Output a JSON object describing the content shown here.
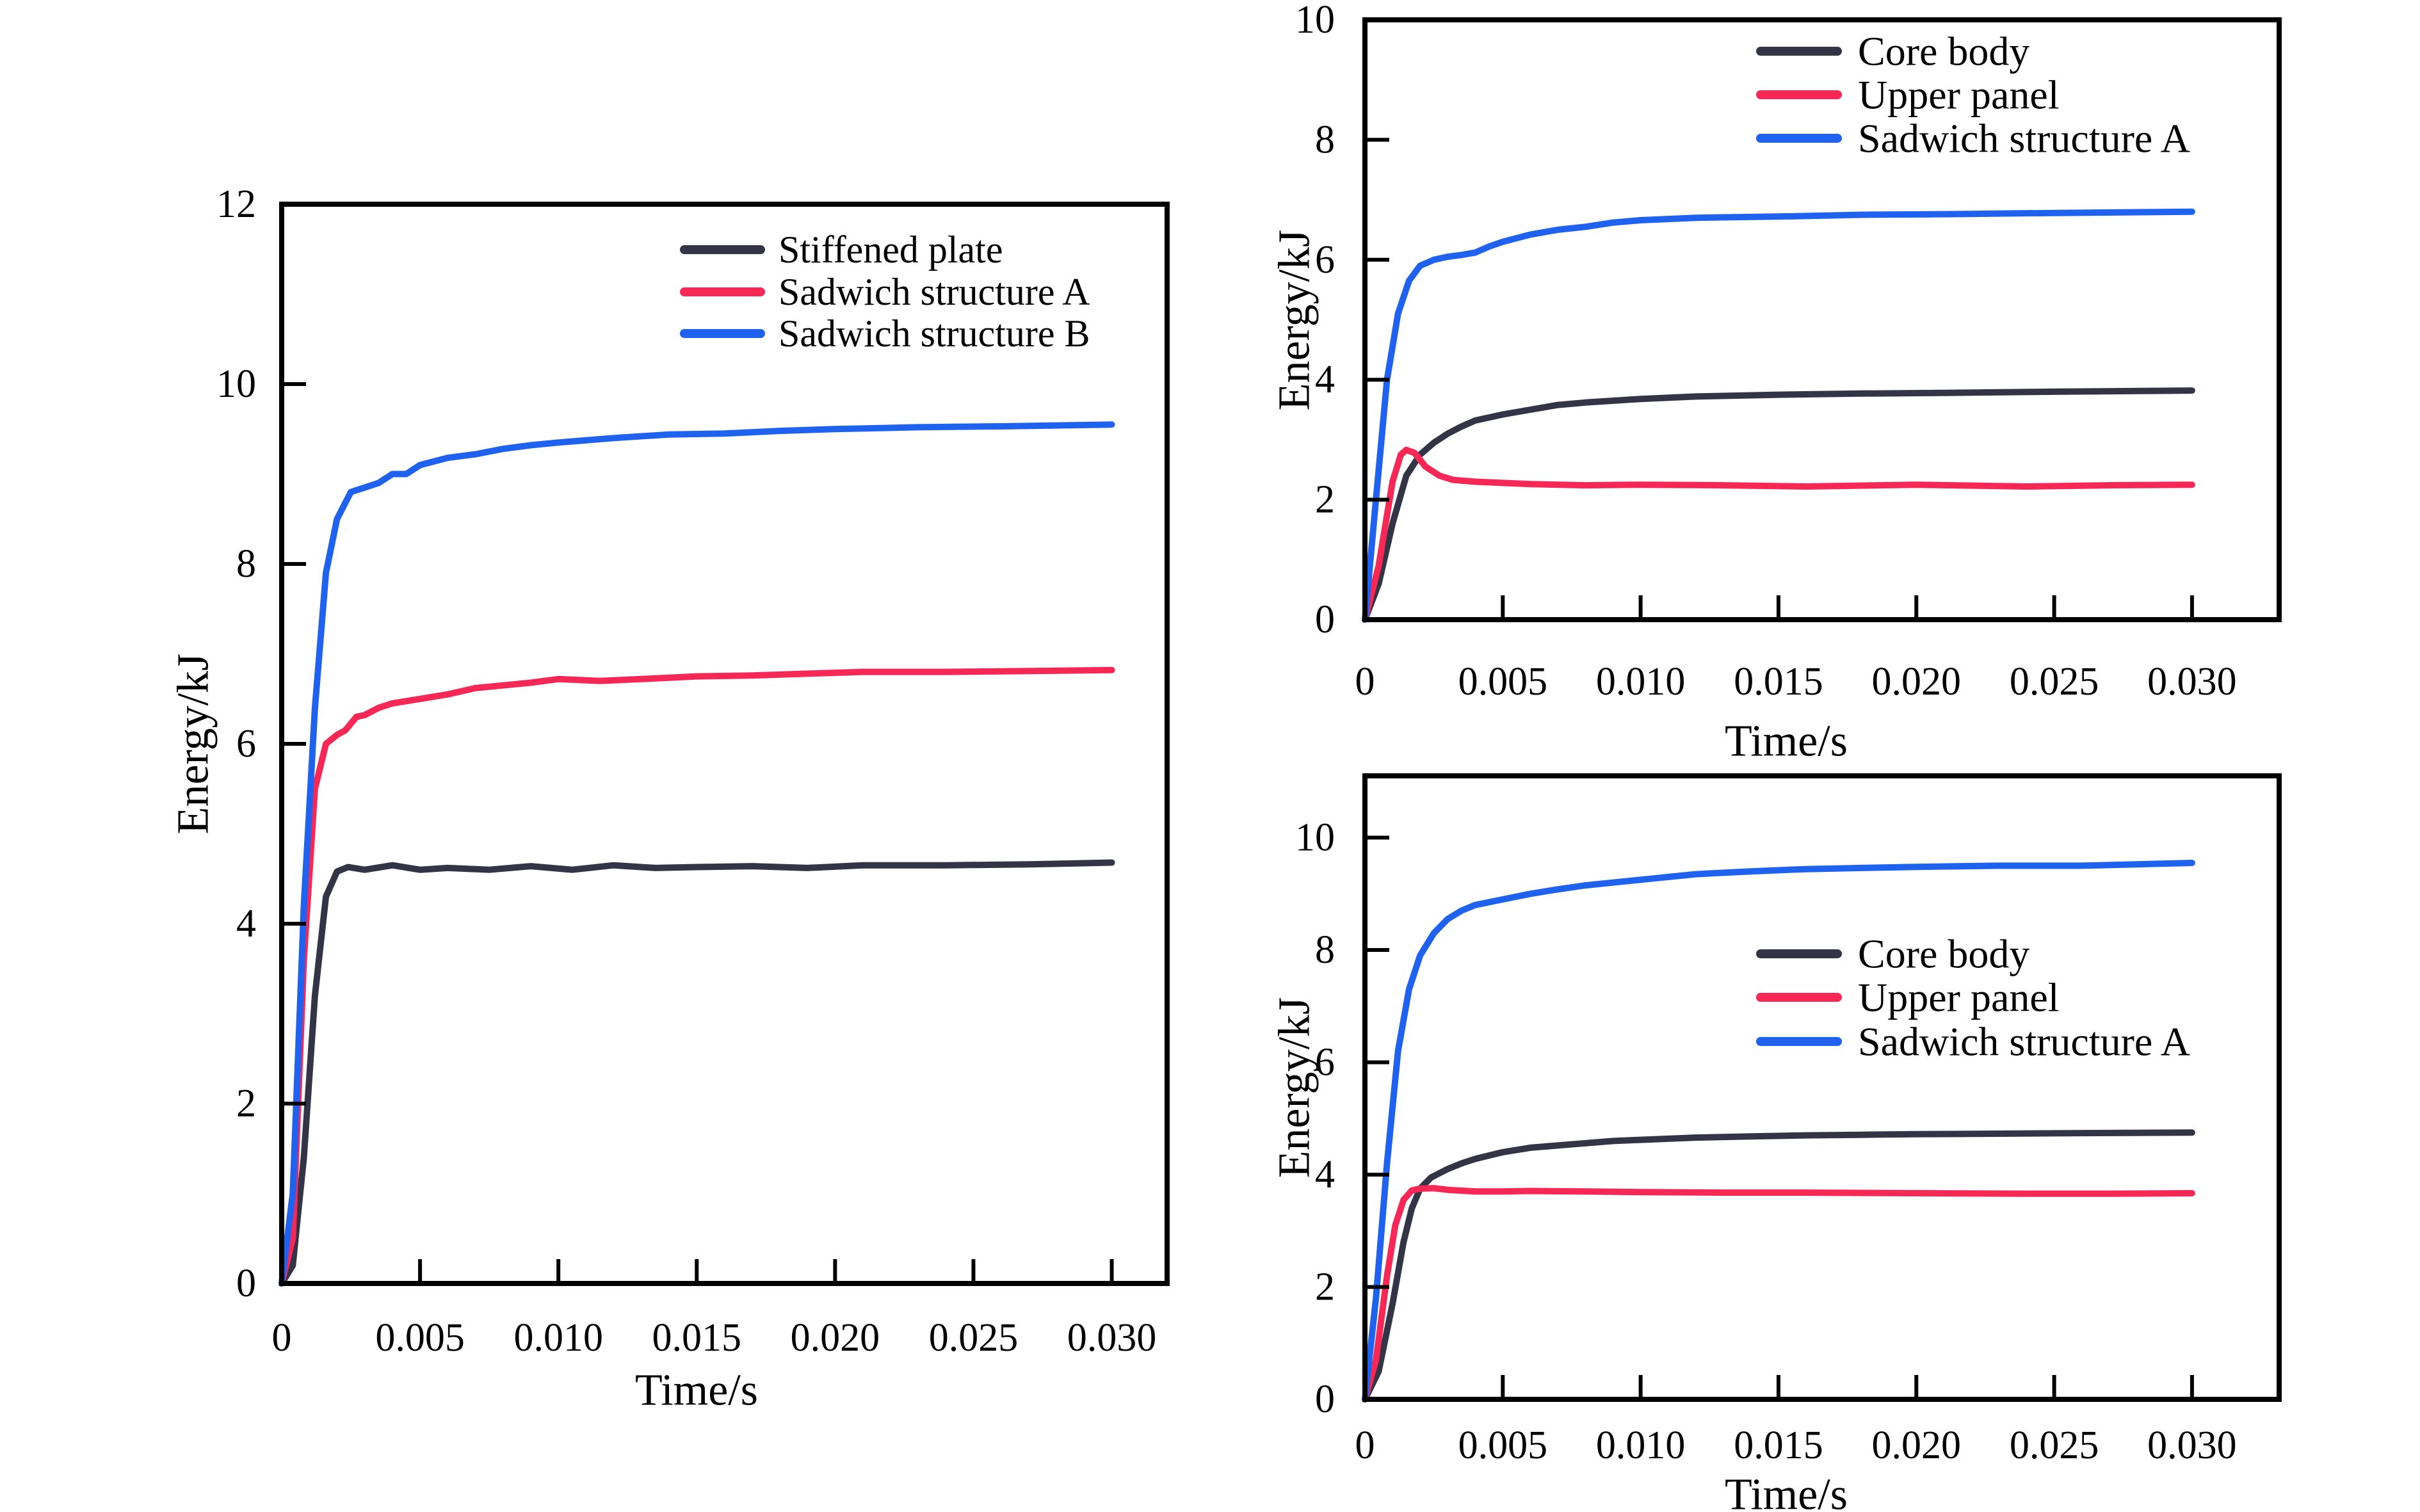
{
  "figure": {
    "background": "#FFFFFF",
    "description": "Three energy-vs-time line charts",
    "colors": {
      "axis": "#000000",
      "dark_series": "#343447",
      "red_series": "#F72855",
      "blue_series": "#1F62F0"
    }
  },
  "chart_data": [
    {
      "id": "left",
      "type": "line",
      "title": "",
      "xlabel": "Time/s",
      "ylabel": "Energy/kJ",
      "xlim": [
        0,
        0.032
      ],
      "ylim": [
        0,
        12
      ],
      "grid": false,
      "legend_position": "top-right-inside",
      "xticks": {
        "values": [
          0,
          0.005,
          0.01,
          0.015,
          0.02,
          0.025,
          0.03
        ],
        "labels": [
          "0",
          "0.005",
          "0.010",
          "0.015",
          "0.020",
          "0.025",
          "0.030"
        ]
      },
      "yticks": {
        "values": [
          0,
          2,
          4,
          6,
          8,
          10,
          12
        ],
        "labels": [
          "0",
          "2",
          "4",
          "6",
          "8",
          "10",
          "12"
        ]
      },
      "legend": {
        "entries": [
          {
            "label": "Stiffened plate",
            "color": "#343447"
          },
          {
            "label": "Sadwich structure A",
            "color": "#F72855"
          },
          {
            "label": "Sadwich structure B",
            "color": "#1F62F0"
          }
        ]
      },
      "series": [
        {
          "name": "Stiffened plate",
          "color": "#343447",
          "x": [
            0,
            0.0004,
            0.0008,
            0.0012,
            0.0016,
            0.002,
            0.0024,
            0.003,
            0.004,
            0.005,
            0.006,
            0.0075,
            0.009,
            0.0105,
            0.012,
            0.0135,
            0.015,
            0.017,
            0.019,
            0.021,
            0.024,
            0.027,
            0.03
          ],
          "y": [
            0,
            0.2,
            1.4,
            3.2,
            4.3,
            4.58,
            4.63,
            4.6,
            4.65,
            4.6,
            4.62,
            4.6,
            4.64,
            4.6,
            4.65,
            4.62,
            4.63,
            4.64,
            4.62,
            4.65,
            4.65,
            4.66,
            4.68
          ]
        },
        {
          "name": "Sadwich structure A",
          "color": "#F72855",
          "x": [
            0,
            0.0004,
            0.0008,
            0.0012,
            0.0016,
            0.002,
            0.0023,
            0.0027,
            0.003,
            0.0035,
            0.004,
            0.005,
            0.006,
            0.007,
            0.008,
            0.009,
            0.01,
            0.0115,
            0.013,
            0.015,
            0.017,
            0.019,
            0.021,
            0.024,
            0.027,
            0.03
          ],
          "y": [
            0,
            0.5,
            3.6,
            5.5,
            6.0,
            6.1,
            6.15,
            6.3,
            6.32,
            6.4,
            6.45,
            6.5,
            6.55,
            6.62,
            6.65,
            6.68,
            6.72,
            6.7,
            6.72,
            6.75,
            6.76,
            6.78,
            6.8,
            6.8,
            6.81,
            6.82
          ]
        },
        {
          "name": "Sadwich structure B",
          "color": "#1F62F0",
          "x": [
            0,
            0.0004,
            0.0008,
            0.0012,
            0.0016,
            0.002,
            0.0025,
            0.003,
            0.0035,
            0.004,
            0.0045,
            0.005,
            0.006,
            0.007,
            0.008,
            0.009,
            0.01,
            0.012,
            0.014,
            0.016,
            0.018,
            0.02,
            0.023,
            0.026,
            0.03
          ],
          "y": [
            0,
            1.0,
            4.2,
            6.4,
            7.9,
            8.5,
            8.8,
            8.85,
            8.9,
            9.0,
            9.0,
            9.1,
            9.18,
            9.22,
            9.28,
            9.32,
            9.35,
            9.4,
            9.44,
            9.45,
            9.48,
            9.5,
            9.52,
            9.53,
            9.55
          ]
        }
      ]
    },
    {
      "id": "top-right",
      "type": "line",
      "title": "",
      "xlabel": "Time/s",
      "ylabel": "Energy/kJ",
      "xlim": [
        0,
        0.03316
      ],
      "ylim": [
        0,
        10
      ],
      "grid": false,
      "legend_position": "top-right-inside",
      "xticks": {
        "values": [
          0,
          0.005,
          0.01,
          0.015,
          0.02,
          0.025,
          0.03
        ],
        "labels": [
          "0",
          "0.005",
          "0.010",
          "0.015",
          "0.020",
          "0.025",
          "0.030"
        ]
      },
      "yticks": {
        "values": [
          0,
          2,
          4,
          6,
          8,
          10
        ],
        "labels": [
          "0",
          "2",
          "4",
          "6",
          "8",
          "10"
        ]
      },
      "legend": {
        "entries": [
          {
            "label": "Core body",
            "color": "#343447"
          },
          {
            "label": "Upper panel",
            "color": "#F72855"
          },
          {
            "label": "Sadwich structure A",
            "color": "#1F62F0"
          }
        ]
      },
      "series": [
        {
          "name": "Core body",
          "color": "#343447",
          "x": [
            0,
            0.0005,
            0.001,
            0.0015,
            0.002,
            0.0025,
            0.003,
            0.0035,
            0.004,
            0.005,
            0.006,
            0.007,
            0.008,
            0.01,
            0.012,
            0.015,
            0.018,
            0.021,
            0.025,
            0.03
          ],
          "y": [
            0,
            0.6,
            1.6,
            2.4,
            2.75,
            2.95,
            3.1,
            3.22,
            3.32,
            3.42,
            3.5,
            3.58,
            3.62,
            3.68,
            3.72,
            3.75,
            3.77,
            3.78,
            3.8,
            3.82
          ]
        },
        {
          "name": "Upper panel",
          "color": "#F72855",
          "x": [
            0,
            0.0005,
            0.001,
            0.0013,
            0.0015,
            0.0018,
            0.0022,
            0.0027,
            0.0032,
            0.004,
            0.005,
            0.006,
            0.008,
            0.01,
            0.013,
            0.016,
            0.02,
            0.024,
            0.027,
            0.03
          ],
          "y": [
            0,
            0.9,
            2.3,
            2.75,
            2.83,
            2.78,
            2.55,
            2.4,
            2.33,
            2.3,
            2.28,
            2.26,
            2.24,
            2.25,
            2.24,
            2.22,
            2.25,
            2.22,
            2.24,
            2.25
          ]
        },
        {
          "name": "Sadwich structure A",
          "color": "#1F62F0",
          "x": [
            0,
            0.0004,
            0.0008,
            0.0012,
            0.0016,
            0.002,
            0.0025,
            0.003,
            0.0035,
            0.004,
            0.0045,
            0.005,
            0.006,
            0.007,
            0.008,
            0.009,
            0.01,
            0.012,
            0.015,
            0.018,
            0.021,
            0.025,
            0.03
          ],
          "y": [
            0,
            2.0,
            4.0,
            5.1,
            5.65,
            5.9,
            6.0,
            6.05,
            6.08,
            6.12,
            6.22,
            6.3,
            6.42,
            6.5,
            6.55,
            6.62,
            6.66,
            6.7,
            6.72,
            6.75,
            6.76,
            6.78,
            6.8
          ]
        }
      ]
    },
    {
      "id": "bottom-right",
      "type": "line",
      "title": "",
      "xlabel": "Time/s",
      "ylabel": "Energy/kJ",
      "xlim": [
        0,
        0.03316
      ],
      "ylim": [
        0,
        11.1
      ],
      "grid": false,
      "legend_position": "middle-right-inside",
      "xticks": {
        "values": [
          0,
          0.005,
          0.01,
          0.015,
          0.02,
          0.025,
          0.03
        ],
        "labels": [
          "0",
          "0.005",
          "0.010",
          "0.015",
          "0.020",
          "0.025",
          "0.030"
        ]
      },
      "yticks": {
        "values": [
          0,
          2,
          4,
          6,
          8,
          10
        ],
        "labels": [
          "0",
          "2",
          "4",
          "6",
          "8",
          "10"
        ]
      },
      "legend": {
        "entries": [
          {
            "label": "Core body",
            "color": "#343447"
          },
          {
            "label": "Upper panel",
            "color": "#F72855"
          },
          {
            "label": "Sadwich structure A",
            "color": "#1F62F0"
          }
        ]
      },
      "series": [
        {
          "name": "Core body",
          "color": "#343447",
          "x": [
            0,
            0.0005,
            0.001,
            0.0014,
            0.0017,
            0.002,
            0.0024,
            0.003,
            0.0035,
            0.004,
            0.005,
            0.006,
            0.007,
            0.008,
            0.009,
            0.01,
            0.012,
            0.014,
            0.016,
            0.018,
            0.02,
            0.023,
            0.026,
            0.03
          ],
          "y": [
            0,
            0.5,
            1.7,
            2.8,
            3.4,
            3.75,
            3.95,
            4.1,
            4.2,
            4.28,
            4.4,
            4.48,
            4.52,
            4.56,
            4.6,
            4.62,
            4.66,
            4.68,
            4.7,
            4.71,
            4.72,
            4.73,
            4.74,
            4.75
          ]
        },
        {
          "name": "Upper panel",
          "color": "#F72855",
          "x": [
            0,
            0.0004,
            0.0008,
            0.0011,
            0.0014,
            0.0017,
            0.002,
            0.0025,
            0.003,
            0.004,
            0.005,
            0.006,
            0.008,
            0.01,
            0.013,
            0.016,
            0.02,
            0.024,
            0.027,
            0.03
          ],
          "y": [
            0,
            0.7,
            2.2,
            3.1,
            3.55,
            3.72,
            3.75,
            3.76,
            3.73,
            3.7,
            3.7,
            3.71,
            3.7,
            3.69,
            3.68,
            3.68,
            3.67,
            3.66,
            3.66,
            3.67
          ]
        },
        {
          "name": "Sadwich structure A",
          "color": "#1F62F0",
          "x": [
            0,
            0.0004,
            0.0008,
            0.0012,
            0.0016,
            0.002,
            0.0025,
            0.003,
            0.0035,
            0.004,
            0.0045,
            0.005,
            0.006,
            0.007,
            0.008,
            0.009,
            0.01,
            0.012,
            0.014,
            0.016,
            0.018,
            0.02,
            0.023,
            0.026,
            0.03
          ],
          "y": [
            0,
            1.8,
            4.2,
            6.2,
            7.3,
            7.9,
            8.3,
            8.55,
            8.7,
            8.8,
            8.85,
            8.9,
            9.0,
            9.08,
            9.15,
            9.2,
            9.25,
            9.35,
            9.4,
            9.44,
            9.46,
            9.48,
            9.5,
            9.5,
            9.55
          ]
        }
      ]
    }
  ]
}
